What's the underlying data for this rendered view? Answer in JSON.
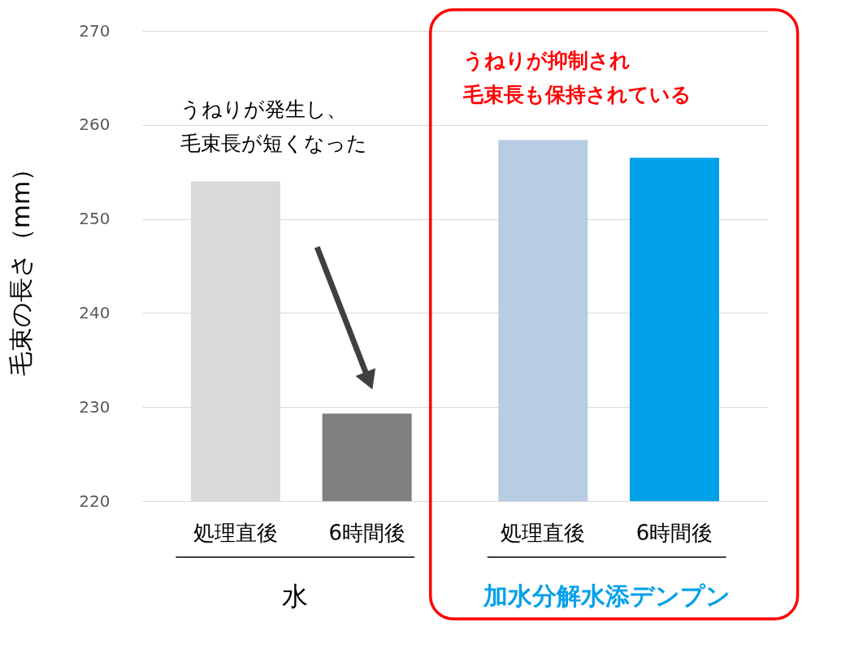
{
  "chart_data": {
    "type": "bar",
    "ylabel": "毛束の長さ（mm）",
    "categories": [
      "処理直後",
      "6時間後",
      "処理直後",
      "6時間後"
    ],
    "values": [
      254,
      229.3,
      258.4,
      256.5
    ],
    "colors": [
      "#d9d9d9",
      "#808080",
      "#b8cce4",
      "#00a0e9"
    ],
    "ylim": [
      220,
      270
    ],
    "yticks": [
      220,
      230,
      240,
      250,
      260,
      270
    ],
    "grid": "y",
    "annotations": [
      "うねりが発生し、",
      "毛束長が短くなった",
      "うねりが抑制され",
      "毛束長も保持されている",
      "水",
      "加水分解水添デンプン"
    ]
  }
}
